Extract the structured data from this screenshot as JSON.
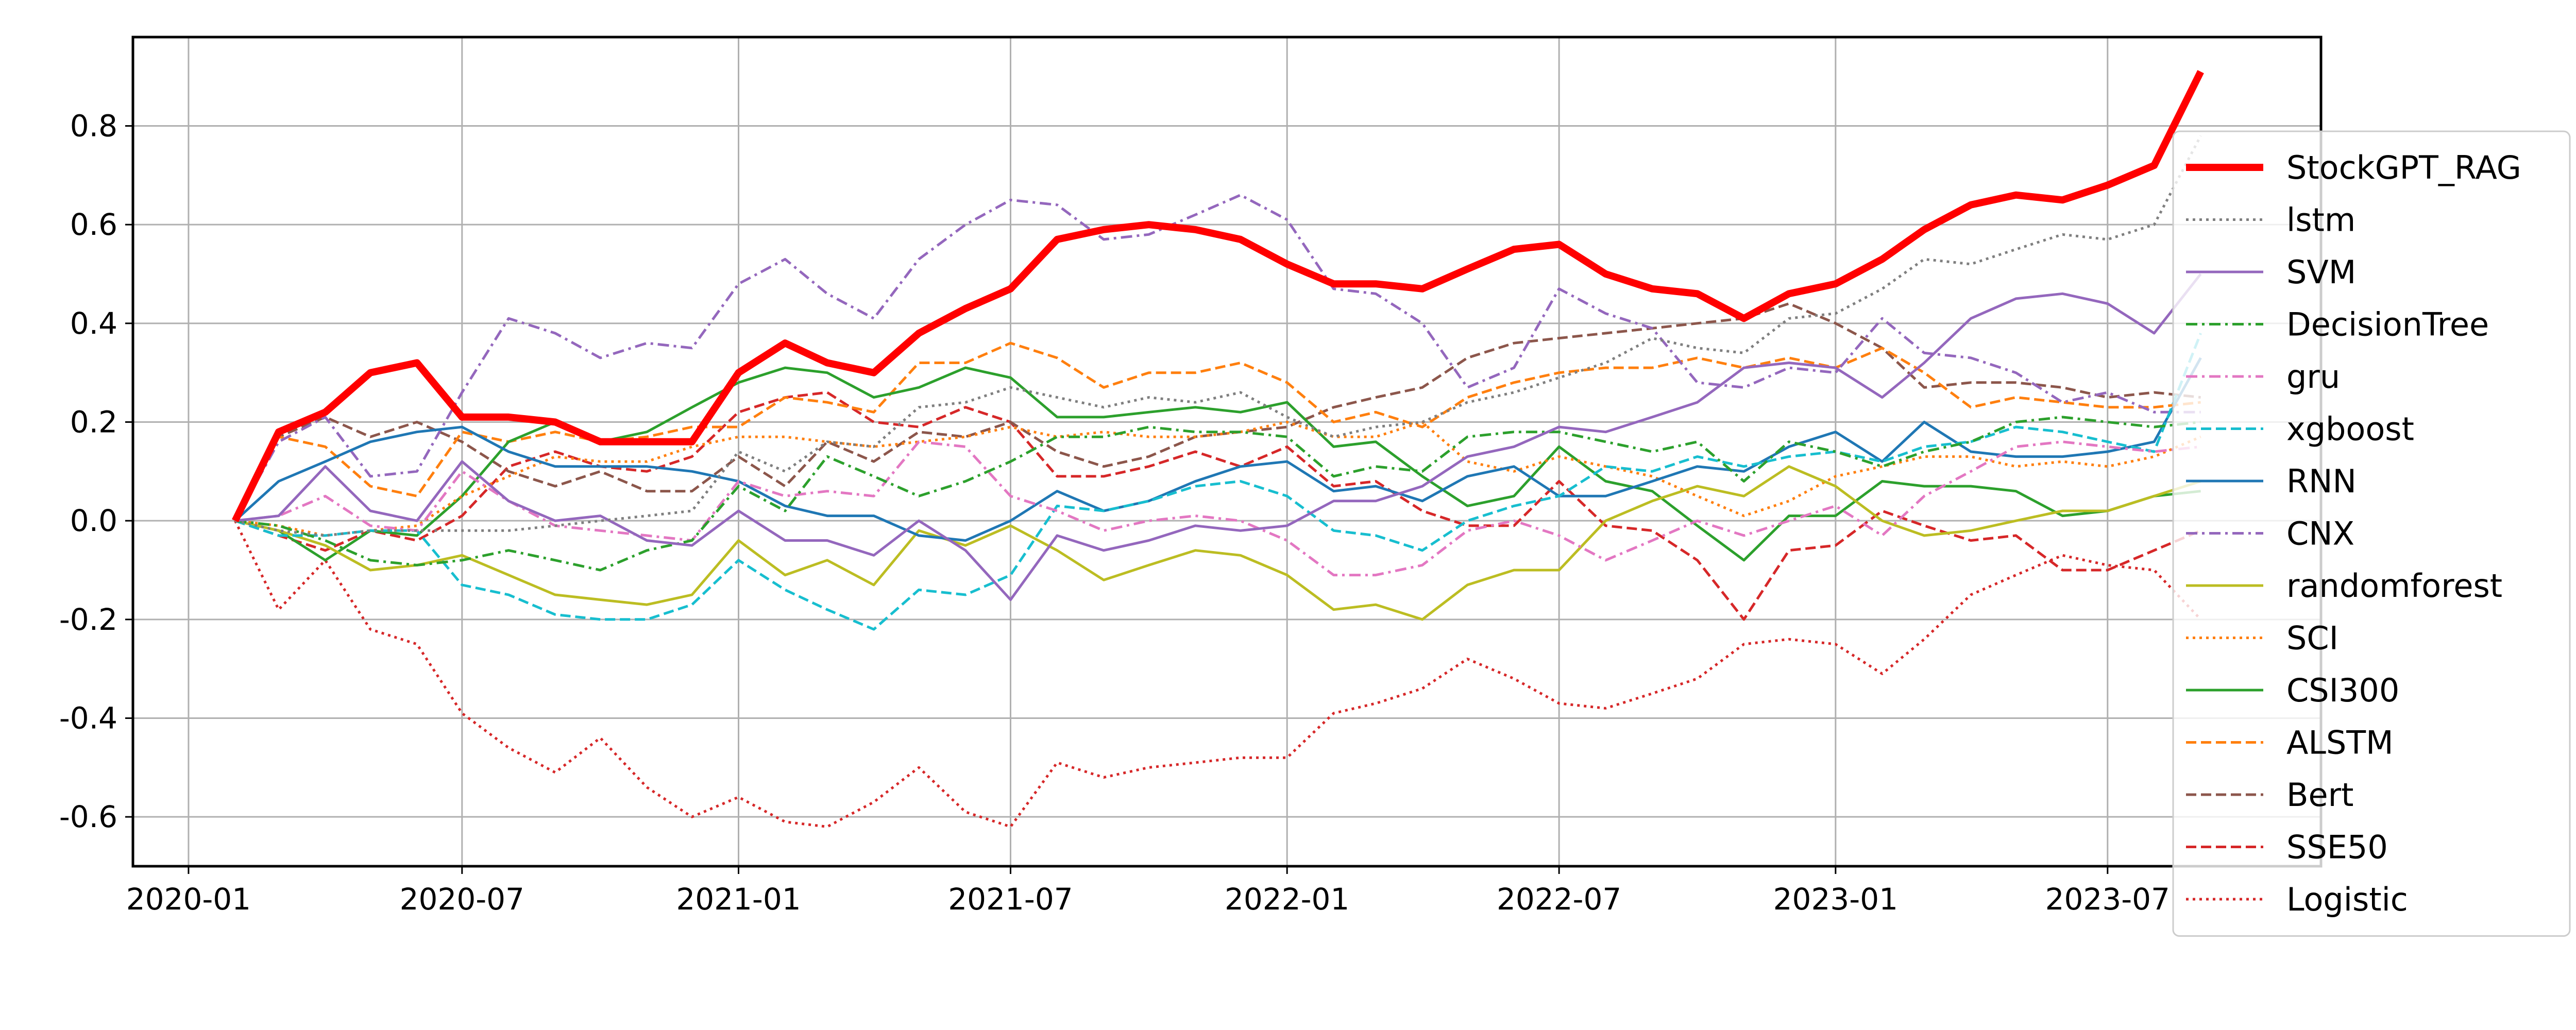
{
  "chart_data": {
    "type": "line",
    "title": "",
    "xlabel": "",
    "ylabel": "",
    "x_range": [
      "2019-11-25",
      "2023-11-20"
    ],
    "ylim": [
      -0.7,
      0.98
    ],
    "x_ticks": [
      {
        "date": "2020-01-01",
        "label": "2020-01"
      },
      {
        "date": "2020-07-01",
        "label": "2020-07"
      },
      {
        "date": "2021-01-01",
        "label": "2021-01"
      },
      {
        "date": "2021-07-01",
        "label": "2021-07"
      },
      {
        "date": "2022-01-01",
        "label": "2022-01"
      },
      {
        "date": "2022-07-01",
        "label": "2022-07"
      },
      {
        "date": "2023-01-01",
        "label": "2023-01"
      },
      {
        "date": "2023-07-01",
        "label": "2023-07"
      }
    ],
    "y_ticks": [
      {
        "value": -0.6,
        "label": "-0.6"
      },
      {
        "value": -0.4,
        "label": "-0.4"
      },
      {
        "value": -0.2,
        "label": "-0.2"
      },
      {
        "value": 0.0,
        "label": "0.0"
      },
      {
        "value": 0.2,
        "label": "0.2"
      },
      {
        "value": 0.4,
        "label": "0.4"
      },
      {
        "value": 0.6,
        "label": "0.6"
      },
      {
        "value": 0.8,
        "label": "0.8"
      }
    ],
    "grid": true,
    "legend_position": "right",
    "x": [
      "2020-02-01",
      "2020-03-01",
      "2020-04-01",
      "2020-05-01",
      "2020-06-01",
      "2020-07-01",
      "2020-08-01",
      "2020-09-01",
      "2020-10-01",
      "2020-11-01",
      "2020-12-01",
      "2021-01-01",
      "2021-02-01",
      "2021-03-01",
      "2021-04-01",
      "2021-05-01",
      "2021-06-01",
      "2021-07-01",
      "2021-08-01",
      "2021-09-01",
      "2021-10-01",
      "2021-11-01",
      "2021-12-01",
      "2022-01-01",
      "2022-02-01",
      "2022-03-01",
      "2022-04-01",
      "2022-05-01",
      "2022-06-01",
      "2022-07-01",
      "2022-08-01",
      "2022-09-01",
      "2022-10-01",
      "2022-11-01",
      "2022-12-01",
      "2023-01-01",
      "2023-02-01",
      "2023-03-01",
      "2023-04-01",
      "2023-05-01",
      "2023-06-01",
      "2023-07-01",
      "2023-08-01",
      "2023-09-01"
    ],
    "series": [
      {
        "name": "StockGPT_RAG",
        "color": "#ff0000",
        "dash": "solid",
        "width": 14,
        "values": [
          0.0,
          0.18,
          0.22,
          0.3,
          0.32,
          0.21,
          0.21,
          0.2,
          0.16,
          0.16,
          0.16,
          0.3,
          0.36,
          0.32,
          0.3,
          0.38,
          0.43,
          0.47,
          0.57,
          0.59,
          0.6,
          0.59,
          0.57,
          0.52,
          0.48,
          0.48,
          0.47,
          0.51,
          0.55,
          0.56,
          0.5,
          0.47,
          0.46,
          0.41,
          0.46,
          0.48,
          0.53,
          0.59,
          0.64,
          0.66,
          0.65,
          0.68,
          0.72,
          0.91
        ]
      },
      {
        "name": "lstm",
        "color": "#7f7f7f",
        "dash": "dotted",
        "width": 5,
        "values": [
          0.0,
          -0.02,
          -0.03,
          -0.02,
          -0.02,
          -0.02,
          -0.02,
          -0.01,
          0.0,
          0.01,
          0.02,
          0.14,
          0.1,
          0.16,
          0.15,
          0.23,
          0.24,
          0.27,
          0.25,
          0.23,
          0.25,
          0.24,
          0.26,
          0.21,
          0.17,
          0.19,
          0.2,
          0.24,
          0.26,
          0.29,
          0.32,
          0.37,
          0.35,
          0.34,
          0.41,
          0.42,
          0.47,
          0.53,
          0.52,
          0.55,
          0.58,
          0.57,
          0.6,
          0.78
        ]
      },
      {
        "name": "SVM",
        "color": "#9467bd",
        "dash": "solid",
        "width": 5,
        "values": [
          0.0,
          0.01,
          0.11,
          0.02,
          0.0,
          0.12,
          0.04,
          0.0,
          0.01,
          -0.04,
          -0.05,
          0.02,
          -0.04,
          -0.04,
          -0.07,
          0.0,
          -0.06,
          -0.16,
          -0.03,
          -0.06,
          -0.04,
          -0.01,
          -0.02,
          -0.01,
          0.04,
          0.04,
          0.07,
          0.13,
          0.15,
          0.19,
          0.18,
          0.21,
          0.24,
          0.31,
          0.32,
          0.31,
          0.25,
          0.32,
          0.41,
          0.45,
          0.46,
          0.44,
          0.38,
          0.5
        ]
      },
      {
        "name": "DecisionTree",
        "color": "#2ca02c",
        "dash": "dashdot",
        "width": 5,
        "values": [
          0.0,
          -0.01,
          -0.04,
          -0.08,
          -0.09,
          -0.08,
          -0.06,
          -0.08,
          -0.1,
          -0.06,
          -0.04,
          0.07,
          0.02,
          0.13,
          0.09,
          0.05,
          0.08,
          0.12,
          0.17,
          0.17,
          0.19,
          0.18,
          0.18,
          0.17,
          0.09,
          0.11,
          0.1,
          0.17,
          0.18,
          0.18,
          0.16,
          0.14,
          0.16,
          0.08,
          0.16,
          0.14,
          0.11,
          0.14,
          0.16,
          0.2,
          0.21,
          0.2,
          0.19,
          0.2
        ]
      },
      {
        "name": "gru",
        "color": "#e377c2",
        "dash": "dashdot",
        "width": 5,
        "values": [
          0.0,
          0.01,
          0.05,
          -0.01,
          -0.02,
          0.1,
          0.04,
          -0.01,
          -0.02,
          -0.03,
          -0.04,
          0.08,
          0.05,
          0.06,
          0.05,
          0.16,
          0.15,
          0.05,
          0.02,
          -0.02,
          0.0,
          0.01,
          0.0,
          -0.04,
          -0.11,
          -0.11,
          -0.09,
          -0.02,
          0.0,
          -0.03,
          -0.08,
          -0.04,
          0.0,
          -0.03,
          0.0,
          0.03,
          -0.03,
          0.05,
          0.1,
          0.15,
          0.16,
          0.15,
          0.14,
          0.15
        ]
      },
      {
        "name": "xgboost",
        "color": "#17becf",
        "dash": "dashed",
        "width": 5,
        "values": [
          0.0,
          -0.03,
          -0.03,
          -0.02,
          -0.02,
          -0.13,
          -0.15,
          -0.19,
          -0.2,
          -0.2,
          -0.17,
          -0.08,
          -0.14,
          -0.18,
          -0.22,
          -0.14,
          -0.15,
          -0.11,
          0.03,
          0.02,
          0.04,
          0.07,
          0.08,
          0.05,
          -0.02,
          -0.03,
          -0.06,
          0.0,
          0.03,
          0.05,
          0.11,
          0.1,
          0.13,
          0.11,
          0.13,
          0.14,
          0.12,
          0.15,
          0.16,
          0.19,
          0.18,
          0.16,
          0.14,
          0.38
        ]
      },
      {
        "name": "RNN",
        "color": "#1f77b4",
        "dash": "solid",
        "width": 5,
        "values": [
          0.0,
          0.08,
          0.12,
          0.16,
          0.18,
          0.19,
          0.14,
          0.11,
          0.11,
          0.11,
          0.1,
          0.08,
          0.03,
          0.01,
          0.01,
          -0.03,
          -0.04,
          0.0,
          0.06,
          0.02,
          0.04,
          0.08,
          0.11,
          0.12,
          0.06,
          0.07,
          0.04,
          0.09,
          0.11,
          0.05,
          0.05,
          0.08,
          0.11,
          0.1,
          0.15,
          0.18,
          0.12,
          0.2,
          0.14,
          0.13,
          0.13,
          0.14,
          0.16,
          0.33
        ]
      },
      {
        "name": "CNX",
        "color": "#9467bd",
        "dash": "dashdot",
        "width": 5,
        "values": [
          0.0,
          0.16,
          0.21,
          0.09,
          0.1,
          0.26,
          0.41,
          0.38,
          0.33,
          0.36,
          0.35,
          0.48,
          0.53,
          0.46,
          0.41,
          0.53,
          0.6,
          0.65,
          0.64,
          0.57,
          0.58,
          0.62,
          0.66,
          0.61,
          0.47,
          0.46,
          0.4,
          0.27,
          0.31,
          0.47,
          0.42,
          0.39,
          0.28,
          0.27,
          0.31,
          0.3,
          0.41,
          0.34,
          0.33,
          0.3,
          0.24,
          0.26,
          0.22,
          0.22
        ]
      },
      {
        "name": "randomforest",
        "color": "#bcbd22",
        "dash": "solid",
        "width": 5,
        "values": [
          0.0,
          -0.02,
          -0.05,
          -0.1,
          -0.09,
          -0.07,
          -0.11,
          -0.15,
          -0.16,
          -0.17,
          -0.15,
          -0.04,
          -0.11,
          -0.08,
          -0.13,
          -0.02,
          -0.05,
          -0.01,
          -0.06,
          -0.12,
          -0.09,
          -0.06,
          -0.07,
          -0.11,
          -0.18,
          -0.17,
          -0.2,
          -0.13,
          -0.1,
          -0.1,
          0.0,
          0.04,
          0.07,
          0.05,
          0.11,
          0.07,
          0.0,
          -0.03,
          -0.02,
          0.0,
          0.02,
          0.02,
          0.05,
          0.08
        ]
      },
      {
        "name": "SCI",
        "color": "#ff7f0e",
        "dash": "dotted",
        "width": 5,
        "values": [
          0.0,
          -0.01,
          -0.03,
          -0.02,
          -0.01,
          0.05,
          0.09,
          0.13,
          0.12,
          0.12,
          0.15,
          0.17,
          0.17,
          0.16,
          0.15,
          0.16,
          0.17,
          0.19,
          0.17,
          0.18,
          0.17,
          0.17,
          0.18,
          0.2,
          0.17,
          0.17,
          0.2,
          0.12,
          0.1,
          0.13,
          0.11,
          0.09,
          0.05,
          0.01,
          0.04,
          0.09,
          0.11,
          0.13,
          0.13,
          0.11,
          0.12,
          0.11,
          0.13,
          0.17
        ]
      },
      {
        "name": "CSI300",
        "color": "#2ca02c",
        "dash": "solid",
        "width": 5,
        "values": [
          0.0,
          -0.02,
          -0.08,
          -0.02,
          -0.03,
          0.05,
          0.16,
          0.2,
          0.16,
          0.18,
          0.23,
          0.28,
          0.31,
          0.3,
          0.25,
          0.27,
          0.31,
          0.29,
          0.21,
          0.21,
          0.22,
          0.23,
          0.22,
          0.24,
          0.15,
          0.16,
          0.09,
          0.03,
          0.05,
          0.15,
          0.08,
          0.06,
          -0.01,
          -0.08,
          0.01,
          0.01,
          0.08,
          0.07,
          0.07,
          0.06,
          0.01,
          0.02,
          0.05,
          0.06
        ]
      },
      {
        "name": "ALSTM",
        "color": "#ff7f0e",
        "dash": "dashed",
        "width": 5,
        "values": [
          0.0,
          0.17,
          0.15,
          0.07,
          0.05,
          0.18,
          0.16,
          0.18,
          0.16,
          0.17,
          0.19,
          0.19,
          0.25,
          0.24,
          0.22,
          0.32,
          0.32,
          0.36,
          0.33,
          0.27,
          0.3,
          0.3,
          0.32,
          0.28,
          0.2,
          0.22,
          0.19,
          0.25,
          0.28,
          0.3,
          0.31,
          0.31,
          0.33,
          0.31,
          0.33,
          0.31,
          0.35,
          0.3,
          0.23,
          0.25,
          0.24,
          0.23,
          0.23,
          0.24
        ]
      },
      {
        "name": "Bert",
        "color": "#8c564b",
        "dash": "dashed",
        "width": 5,
        "values": [
          0.0,
          0.17,
          0.21,
          0.17,
          0.2,
          0.16,
          0.1,
          0.07,
          0.1,
          0.06,
          0.06,
          0.13,
          0.07,
          0.16,
          0.12,
          0.18,
          0.17,
          0.2,
          0.14,
          0.11,
          0.13,
          0.17,
          0.18,
          0.19,
          0.23,
          0.25,
          0.27,
          0.33,
          0.36,
          0.37,
          0.38,
          0.39,
          0.4,
          0.41,
          0.44,
          0.4,
          0.35,
          0.27,
          0.28,
          0.28,
          0.27,
          0.25,
          0.26,
          0.25
        ]
      },
      {
        "name": "SSE50",
        "color": "#d62728",
        "dash": "dashed",
        "width": 5,
        "values": [
          0.0,
          -0.03,
          -0.06,
          -0.02,
          -0.04,
          0.01,
          0.11,
          0.14,
          0.11,
          0.1,
          0.13,
          0.22,
          0.25,
          0.26,
          0.2,
          0.19,
          0.23,
          0.2,
          0.09,
          0.09,
          0.11,
          0.14,
          0.11,
          0.15,
          0.07,
          0.08,
          0.02,
          -0.01,
          -0.01,
          0.08,
          -0.01,
          -0.02,
          -0.08,
          -0.2,
          -0.06,
          -0.05,
          0.02,
          -0.01,
          -0.04,
          -0.03,
          -0.1,
          -0.1,
          -0.06,
          -0.02
        ]
      },
      {
        "name": "Logistic",
        "color": "#d62728",
        "dash": "dotted",
        "width": 5,
        "values": [
          0.0,
          -0.18,
          -0.08,
          -0.22,
          -0.25,
          -0.39,
          -0.46,
          -0.51,
          -0.44,
          -0.54,
          -0.6,
          -0.56,
          -0.61,
          -0.62,
          -0.57,
          -0.5,
          -0.59,
          -0.62,
          -0.49,
          -0.52,
          -0.5,
          -0.49,
          -0.48,
          -0.48,
          -0.39,
          -0.37,
          -0.34,
          -0.28,
          -0.32,
          -0.37,
          -0.38,
          -0.35,
          -0.32,
          -0.25,
          -0.24,
          -0.25,
          -0.31,
          -0.24,
          -0.15,
          -0.11,
          -0.07,
          -0.09,
          -0.1,
          -0.2
        ]
      }
    ]
  }
}
